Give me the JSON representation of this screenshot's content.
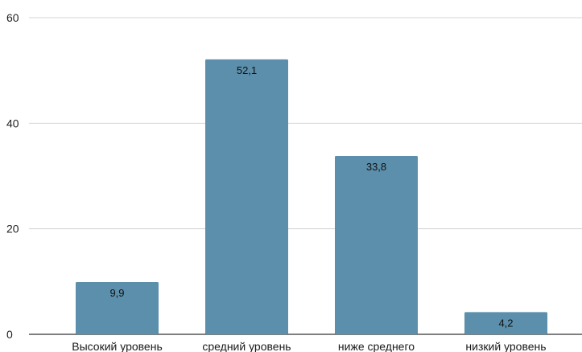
{
  "chart_data": {
    "type": "bar",
    "categories": [
      "Высокий уровень",
      "средний уровень",
      "ниже среднего",
      "низкий уровень"
    ],
    "values": [
      9.9,
      52.1,
      33.8,
      4.2
    ],
    "data_labels": [
      "9,9",
      "52,1",
      "33,8",
      "4,2"
    ],
    "y_ticks": [
      0,
      20,
      40,
      60
    ],
    "ylim": [
      0,
      60
    ],
    "grid": true,
    "bar_color": "#5b8fab"
  }
}
